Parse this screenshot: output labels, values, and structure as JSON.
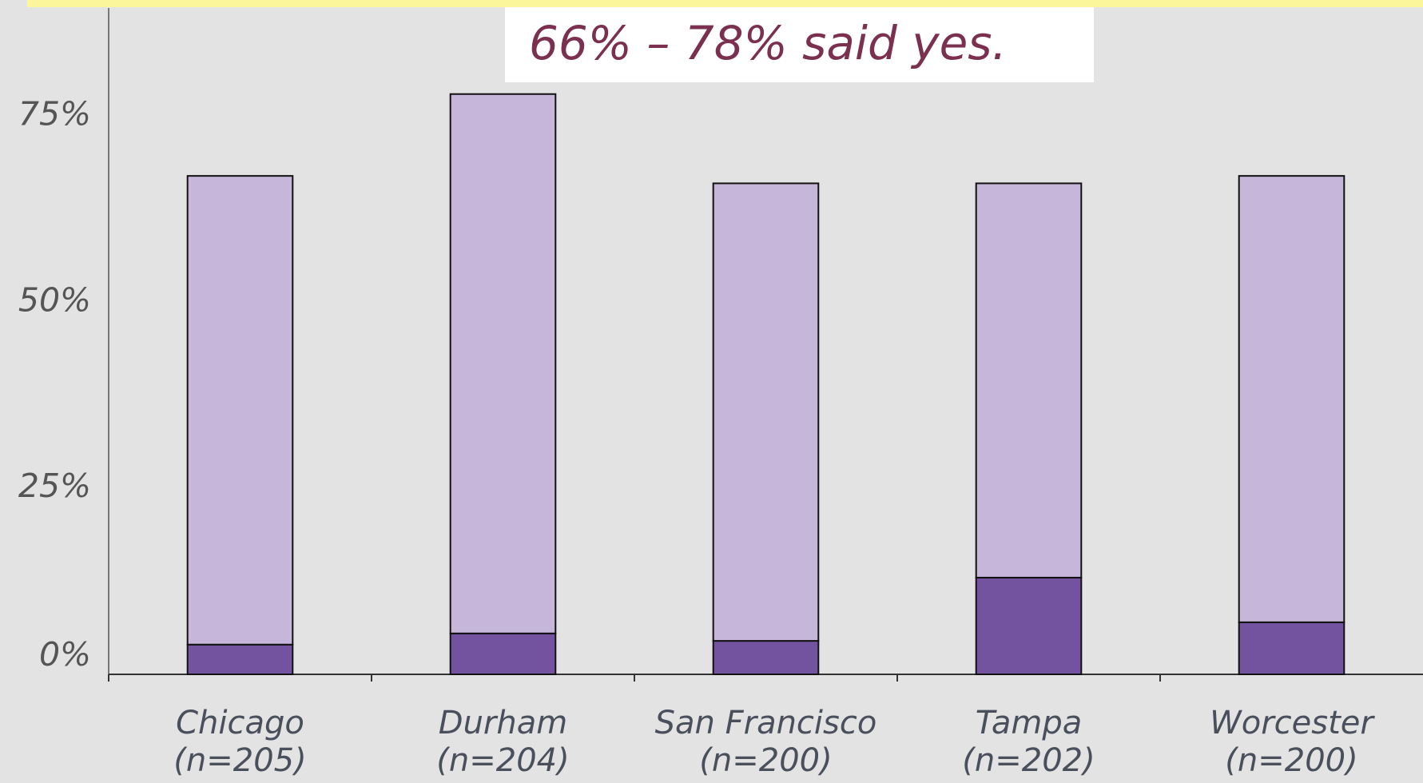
{
  "chart_data": {
    "type": "stacked_bar",
    "annotation": "66% – 78% said yes.",
    "categories": [
      [
        "Chicago",
        "(n=205)"
      ],
      [
        "Durham",
        "(n=204)"
      ],
      [
        "San Francisco",
        "(n=200)"
      ],
      [
        "Tampa",
        "(n=202)"
      ],
      [
        "Worcester",
        "(n=200)"
      ]
    ],
    "series": [
      {
        "color": "#7352a0",
        "values": [
          4,
          5.5,
          4.5,
          13,
          7
        ]
      },
      {
        "color": "#c5b6da",
        "values": [
          63,
          72.5,
          61.5,
          53,
          60
        ]
      }
    ],
    "ylim": [
      0,
      90
    ],
    "yticks": [
      {
        "value": 0,
        "label": "0%"
      },
      {
        "value": 25,
        "label": "25%"
      },
      {
        "value": 50,
        "label": "50%"
      },
      {
        "value": 75,
        "label": "75%"
      }
    ]
  }
}
